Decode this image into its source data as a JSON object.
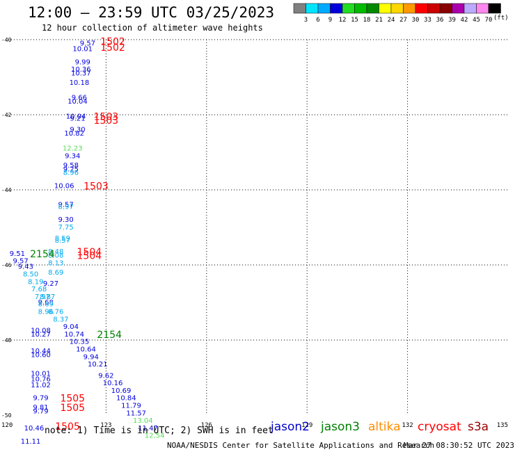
{
  "header": {
    "title": "12:00 – 23:59 UTC 03/25/2023",
    "subtitle": "12 hour collection of altimeter wave heights"
  },
  "footer": {
    "note": "note: 1) Time is in UTC; 2) SWH is in feet",
    "credit": "NOAA/NESDIS Center for Satellite Applications and Research",
    "timestamp": "Mar 27 08:30:52 UTC 2023"
  },
  "satellites": [
    {
      "name": "jason2",
      "color": "#0000cc"
    },
    {
      "name": "jason3",
      "color": "#008000"
    },
    {
      "name": "altika",
      "color": "#ff8c00"
    },
    {
      "name": "cryosat",
      "color": "#ff0000"
    },
    {
      "name": "s3a",
      "color": "#990000"
    }
  ],
  "color_scale": {
    "unit": "(ft)",
    "bins": [
      {
        "label": "3",
        "color": "#808080"
      },
      {
        "label": "6",
        "color": "#00e5ff"
      },
      {
        "label": "9",
        "color": "#00aaff"
      },
      {
        "label": "12",
        "color": "#0000dd"
      },
      {
        "label": "15",
        "color": "#22dd22"
      },
      {
        "label": "18",
        "color": "#00bb00"
      },
      {
        "label": "21",
        "color": "#008800"
      },
      {
        "label": "24",
        "color": "#ffff00"
      },
      {
        "label": "27",
        "color": "#ffd700"
      },
      {
        "label": "30",
        "color": "#ff9900"
      },
      {
        "label": "33",
        "color": "#ff0000"
      },
      {
        "label": "36",
        "color": "#cc0000"
      },
      {
        "label": "39",
        "color": "#880000"
      },
      {
        "label": "42",
        "color": "#aa00aa"
      },
      {
        "label": "45",
        "color": "#bbaaff"
      },
      {
        "label": "70",
        "color": "#ff88ee"
      },
      {
        "label": "",
        "color": "#000000"
      }
    ]
  },
  "chart_data": {
    "type": "scatter",
    "xlabel": "",
    "ylabel": "",
    "xlim": [
      120,
      135
    ],
    "ylim": [
      -50,
      -40
    ],
    "x_ticks": [
      "120",
      "123",
      "126",
      "129",
      "132",
      "135"
    ],
    "y_ticks": [
      "-40",
      "-42",
      "-44",
      "-46",
      "-48",
      "-50"
    ],
    "grid": true,
    "points": [
      {
        "lon": 122.45,
        "lat": -40.1,
        "label": "9.57",
        "color": "#0000dd"
      },
      {
        "lon": 122.3,
        "lat": -40.25,
        "label": "10.01",
        "color": "#0000dd"
      },
      {
        "lon": 122.3,
        "lat": -40.6,
        "label": "9.99",
        "color": "#0000dd"
      },
      {
        "lon": 122.25,
        "lat": -40.8,
        "label": "10.36",
        "color": "#0000dd"
      },
      {
        "lon": 122.25,
        "lat": -40.9,
        "label": "10.37",
        "color": "#0000dd"
      },
      {
        "lon": 122.2,
        "lat": -41.15,
        "label": "10.18",
        "color": "#0000dd"
      },
      {
        "lon": 122.2,
        "lat": -41.55,
        "label": "9.66",
        "color": "#0000dd"
      },
      {
        "lon": 122.15,
        "lat": -41.65,
        "label": "10.04",
        "color": "#0000dd"
      },
      {
        "lon": 122.1,
        "lat": -42.05,
        "label": "10.04",
        "color": "#0000dd"
      },
      {
        "lon": 122.15,
        "lat": -42.1,
        "label": "9.21",
        "color": "#0000dd"
      },
      {
        "lon": 122.15,
        "lat": -42.4,
        "label": "9.30",
        "color": "#0000dd"
      },
      {
        "lon": 122.05,
        "lat": -42.5,
        "label": "10.82",
        "color": "#0000dd"
      },
      {
        "lon": 122.0,
        "lat": -42.9,
        "label": "12.23",
        "color": "#55dd55"
      },
      {
        "lon": 122.0,
        "lat": -43.1,
        "label": "9.34",
        "color": "#0000dd"
      },
      {
        "lon": 121.95,
        "lat": -43.35,
        "label": "9.58",
        "color": "#0000dd"
      },
      {
        "lon": 121.95,
        "lat": -43.45,
        "label": "9.25",
        "color": "#0000dd"
      },
      {
        "lon": 121.95,
        "lat": -43.55,
        "label": "8.96",
        "color": "#00aaee"
      },
      {
        "lon": 121.75,
        "lat": -43.9,
        "label": "10.06",
        "color": "#0000dd"
      },
      {
        "lon": 121.8,
        "lat": -44.4,
        "label": "9.57",
        "color": "#0000dd"
      },
      {
        "lon": 121.8,
        "lat": -44.45,
        "label": "8.97",
        "color": "#00aaee"
      },
      {
        "lon": 121.8,
        "lat": -44.8,
        "label": "9.30",
        "color": "#0000dd"
      },
      {
        "lon": 121.8,
        "lat": -45.0,
        "label": "7.75",
        "color": "#00aaee"
      },
      {
        "lon": 121.7,
        "lat": -45.3,
        "label": "8.59",
        "color": "#00aaee"
      },
      {
        "lon": 121.7,
        "lat": -45.35,
        "label": "8.57",
        "color": "#00aaee"
      },
      {
        "lon": 121.5,
        "lat": -45.65,
        "label": "8.48",
        "color": "#00aaee"
      },
      {
        "lon": 121.5,
        "lat": -45.75,
        "label": "8.08",
        "color": "#00aaee"
      },
      {
        "lon": 121.5,
        "lat": -45.95,
        "label": "8.13",
        "color": "#00aaee"
      },
      {
        "lon": 120.35,
        "lat": -45.7,
        "label": "9.51",
        "color": "#0000dd"
      },
      {
        "lon": 120.45,
        "lat": -45.9,
        "label": "9.57",
        "color": "#0000dd"
      },
      {
        "lon": 120.6,
        "lat": -46.05,
        "label": "9.43",
        "color": "#0000dd"
      },
      {
        "lon": 120.75,
        "lat": -46.25,
        "label": "8.50",
        "color": "#00aaee"
      },
      {
        "lon": 121.5,
        "lat": -46.2,
        "label": "8.69",
        "color": "#00aaee"
      },
      {
        "lon": 120.9,
        "lat": -46.45,
        "label": "8.19",
        "color": "#00aaee"
      },
      {
        "lon": 121.35,
        "lat": -46.5,
        "label": "9.27",
        "color": "#0000dd"
      },
      {
        "lon": 121.0,
        "lat": -46.65,
        "label": "7.68",
        "color": "#00aaee"
      },
      {
        "lon": 121.1,
        "lat": -46.85,
        "label": "7.97",
        "color": "#00aaee"
      },
      {
        "lon": 121.25,
        "lat": -46.85,
        "label": "8.87",
        "color": "#00aaee"
      },
      {
        "lon": 121.2,
        "lat": -47.0,
        "label": "9.68",
        "color": "#0000dd"
      },
      {
        "lon": 121.2,
        "lat": -47.05,
        "label": "8.69",
        "color": "#00aaee"
      },
      {
        "lon": 121.2,
        "lat": -47.25,
        "label": "8.96",
        "color": "#00aaee"
      },
      {
        "lon": 121.5,
        "lat": -47.25,
        "label": "8.76",
        "color": "#00aaee"
      },
      {
        "lon": 121.65,
        "lat": -47.45,
        "label": "8.37",
        "color": "#00aaee"
      },
      {
        "lon": 121.95,
        "lat": -47.65,
        "label": "9.04",
        "color": "#0000dd"
      },
      {
        "lon": 121.05,
        "lat": -47.75,
        "label": "10.08",
        "color": "#0000dd"
      },
      {
        "lon": 121.05,
        "lat": -47.85,
        "label": "10.27",
        "color": "#0000dd"
      },
      {
        "lon": 122.05,
        "lat": -47.85,
        "label": "10.74",
        "color": "#0000dd"
      },
      {
        "lon": 122.2,
        "lat": -48.05,
        "label": "10.35",
        "color": "#0000dd"
      },
      {
        "lon": 122.4,
        "lat": -48.25,
        "label": "10.64",
        "color": "#0000dd"
      },
      {
        "lon": 121.05,
        "lat": -48.3,
        "label": "10.44",
        "color": "#0000dd"
      },
      {
        "lon": 121.05,
        "lat": -48.4,
        "label": "10.60",
        "color": "#0000dd"
      },
      {
        "lon": 122.55,
        "lat": -48.45,
        "label": "9.94",
        "color": "#0000dd"
      },
      {
        "lon": 122.75,
        "lat": -48.65,
        "label": "10.21",
        "color": "#0000dd"
      },
      {
        "lon": 121.05,
        "lat": -48.9,
        "label": "10.01",
        "color": "#0000dd"
      },
      {
        "lon": 123.0,
        "lat": -48.95,
        "label": "9.62",
        "color": "#0000dd"
      },
      {
        "lon": 121.05,
        "lat": -49.05,
        "label": "10.76",
        "color": "#0000dd"
      },
      {
        "lon": 123.2,
        "lat": -49.15,
        "label": "10.16",
        "color": "#0000dd"
      },
      {
        "lon": 121.05,
        "lat": -49.2,
        "label": "11.02",
        "color": "#0000dd"
      },
      {
        "lon": 123.45,
        "lat": -49.35,
        "label": "10.69",
        "color": "#0000dd"
      },
      {
        "lon": 123.6,
        "lat": -49.55,
        "label": "10.84",
        "color": "#0000dd"
      },
      {
        "lon": 121.05,
        "lat": -49.55,
        "label": "9.79",
        "color": "#0000dd"
      },
      {
        "lon": 123.75,
        "lat": -49.75,
        "label": "11.79",
        "color": "#0000dd"
      },
      {
        "lon": 121.05,
        "lat": -49.8,
        "label": "9.81",
        "color": "#0000dd"
      },
      {
        "lon": 121.05,
        "lat": -49.9,
        "label": "9.79",
        "color": "#0000dd"
      },
      {
        "lon": 123.9,
        "lat": -49.95,
        "label": "11.57",
        "color": "#0000dd"
      },
      {
        "lon": 124.1,
        "lat": -50.15,
        "label": "13.04",
        "color": "#55dd55"
      },
      {
        "lon": 120.85,
        "lat": -50.35,
        "label": "10.46",
        "color": "#0000dd"
      },
      {
        "lon": 124.25,
        "lat": -50.35,
        "label": "11.47",
        "color": "#0000dd"
      },
      {
        "lon": 124.45,
        "lat": -50.55,
        "label": "12.54",
        "color": "#55dd55"
      },
      {
        "lon": 120.75,
        "lat": -50.7,
        "label": "11.11",
        "color": "#0000dd"
      }
    ],
    "time_labels": [
      {
        "lon": 123.2,
        "lat": -40.05,
        "label": "1502",
        "color": "#ff0000"
      },
      {
        "lon": 123.2,
        "lat": -40.2,
        "label": "1502",
        "color": "#ff0000"
      },
      {
        "lon": 123.0,
        "lat": -42.05,
        "label": "1503",
        "color": "#ff0000"
      },
      {
        "lon": 123.0,
        "lat": -42.15,
        "label": "1503",
        "color": "#ff0000"
      },
      {
        "lon": 122.7,
        "lat": -43.9,
        "label": "1503",
        "color": "#ff0000"
      },
      {
        "lon": 122.5,
        "lat": -45.65,
        "label": "1504",
        "color": "#ff0000"
      },
      {
        "lon": 122.5,
        "lat": -45.75,
        "label": "1504",
        "color": "#ff0000"
      },
      {
        "lon": 121.1,
        "lat": -45.7,
        "label": "2154",
        "color": "#008000"
      },
      {
        "lon": 123.1,
        "lat": -47.85,
        "label": "2154",
        "color": "#008000"
      },
      {
        "lon": 122.0,
        "lat": -49.55,
        "label": "1505",
        "color": "#ff0000"
      },
      {
        "lon": 122.0,
        "lat": -49.8,
        "label": "1505",
        "color": "#ff0000"
      },
      {
        "lon": 121.85,
        "lat": -50.3,
        "label": "1505",
        "color": "#ff0000"
      }
    ]
  }
}
